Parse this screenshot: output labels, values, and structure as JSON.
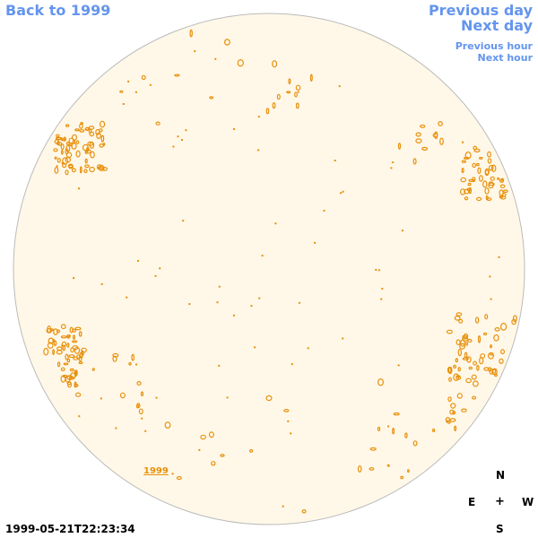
{
  "nav": {
    "back": "Back to 1999",
    "prev_day": "Previous day",
    "next_day": "Next day",
    "prev_hour": "Previous hour",
    "next_hour": "Next hour"
  },
  "compass": {
    "n": "N",
    "e": "E",
    "center": "+",
    "w": "W",
    "s": "S"
  },
  "timestamp": "1999-05-21T22:23:34",
  "year_link": "1999",
  "colors": {
    "disk": "#fff8e8",
    "rim": "#bbbbbb",
    "contour": "#e8900c",
    "nav": "#6495ed"
  }
}
